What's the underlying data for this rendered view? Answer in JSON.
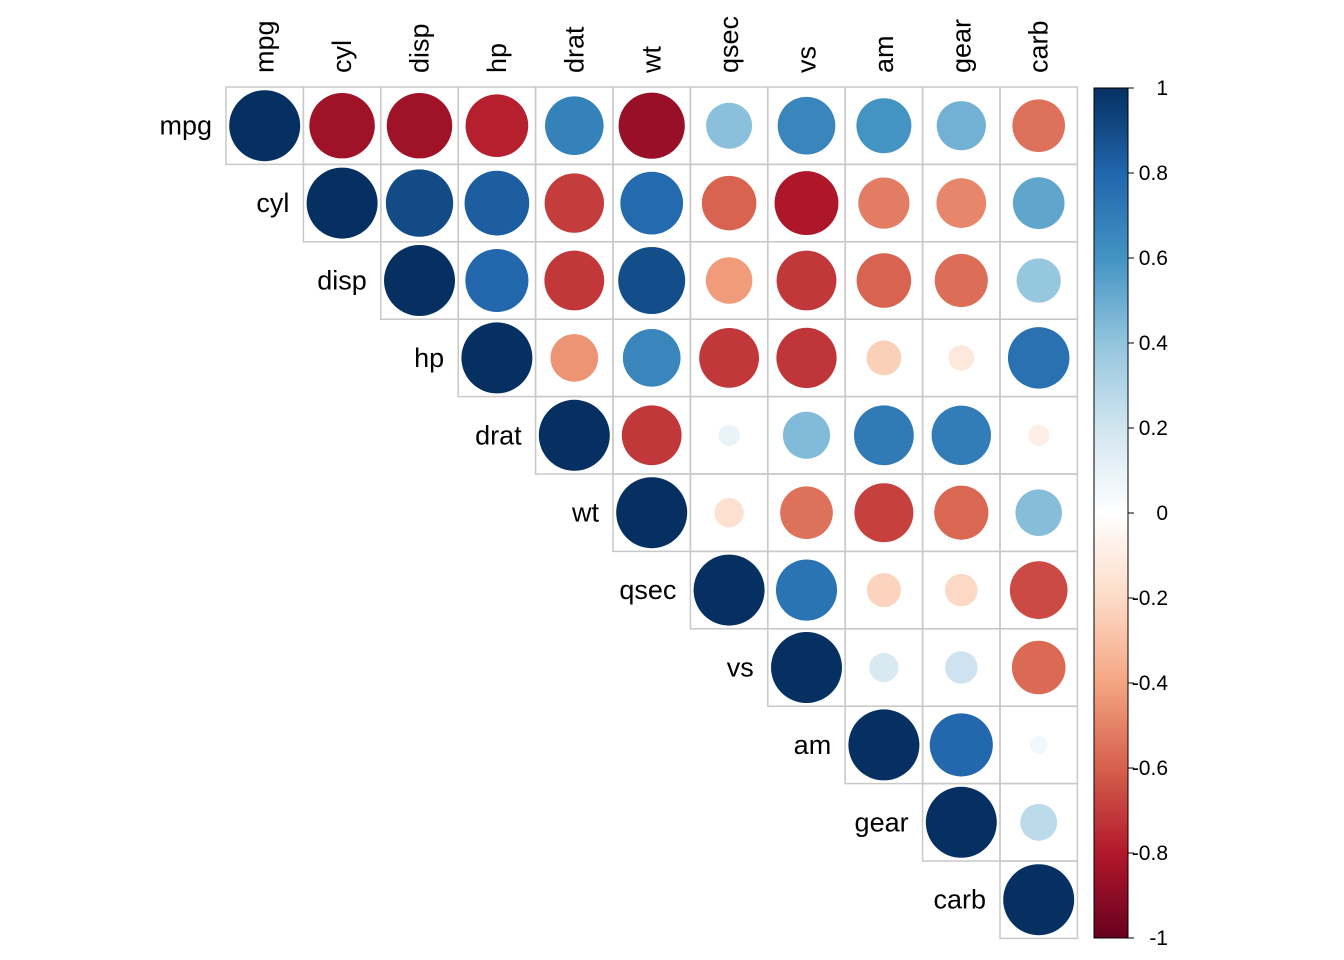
{
  "chart_data": {
    "type": "heatmap",
    "subtype": "correlation-upper-triangle-circles",
    "variables": [
      "mpg",
      "cyl",
      "disp",
      "hp",
      "drat",
      "wt",
      "qsec",
      "vs",
      "am",
      "gear",
      "carb"
    ],
    "matrix": [
      [
        1,
        -0.85,
        -0.85,
        -0.78,
        0.68,
        -0.87,
        0.42,
        0.66,
        0.6,
        0.48,
        -0.55
      ],
      [
        -0.85,
        1,
        0.9,
        0.83,
        -0.7,
        0.78,
        -0.59,
        -0.81,
        -0.52,
        -0.49,
        0.53
      ],
      [
        -0.85,
        0.9,
        1,
        0.79,
        -0.71,
        0.89,
        -0.43,
        -0.71,
        -0.59,
        -0.56,
        0.39
      ],
      [
        -0.78,
        0.83,
        0.79,
        1,
        -0.45,
        0.66,
        -0.71,
        -0.72,
        -0.24,
        -0.13,
        0.75
      ],
      [
        0.68,
        -0.7,
        -0.71,
        -0.45,
        1,
        -0.71,
        0.09,
        0.44,
        0.71,
        0.7,
        -0.09
      ],
      [
        -0.87,
        0.78,
        0.89,
        0.66,
        -0.71,
        1,
        -0.17,
        -0.55,
        -0.69,
        -0.58,
        0.43
      ],
      [
        0.42,
        -0.59,
        -0.43,
        -0.71,
        0.09,
        -0.17,
        1,
        0.74,
        -0.23,
        -0.21,
        -0.66
      ],
      [
        0.66,
        -0.81,
        -0.71,
        -0.72,
        0.44,
        -0.55,
        0.74,
        1,
        0.17,
        0.21,
        -0.57
      ],
      [
        0.6,
        -0.52,
        -0.59,
        -0.24,
        0.71,
        -0.69,
        -0.23,
        0.17,
        1,
        0.79,
        0.06
      ],
      [
        0.48,
        -0.49,
        -0.56,
        -0.13,
        0.7,
        -0.58,
        -0.21,
        0.21,
        0.79,
        1,
        0.27
      ],
      [
        -0.55,
        0.53,
        0.39,
        0.75,
        -0.09,
        0.43,
        -0.66,
        -0.57,
        0.06,
        0.27,
        1
      ]
    ],
    "color_scale": {
      "range": [
        -1,
        1
      ],
      "ticks": [
        "1",
        "0.8",
        "0.6",
        "0.4",
        "0.2",
        "0",
        "-0.2",
        "-0.4",
        "-0.6",
        "-0.8",
        "-1"
      ],
      "stops": [
        "#67001F",
        "#B2182B",
        "#D6604D",
        "#F4A582",
        "#FDDBC7",
        "#FFFFFF",
        "#D1E5F0",
        "#92C5DE",
        "#4393C3",
        "#2166AC",
        "#053061"
      ]
    },
    "title": "",
    "legend_position": "right"
  }
}
